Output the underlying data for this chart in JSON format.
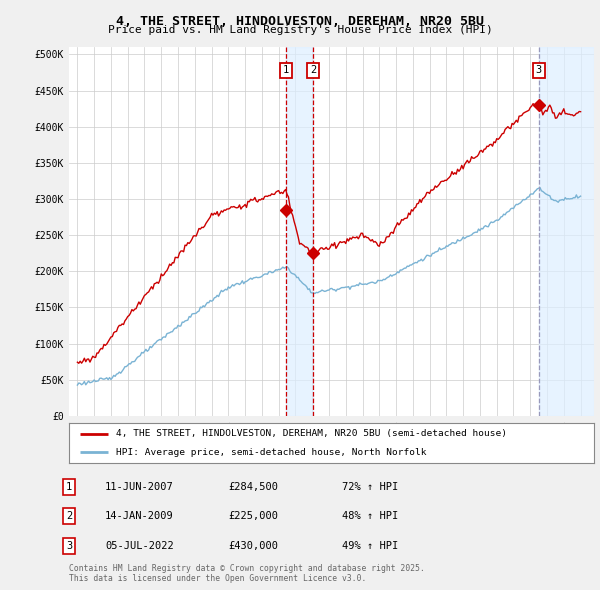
{
  "title_line1": "4, THE STREET, HINDOLVESTON, DEREHAM, NR20 5BU",
  "title_line2": "Price paid vs. HM Land Registry's House Price Index (HPI)",
  "ylabel_ticks": [
    "£0",
    "£50K",
    "£100K",
    "£150K",
    "£200K",
    "£250K",
    "£300K",
    "£350K",
    "£400K",
    "£450K",
    "£500K"
  ],
  "ytick_values": [
    0,
    50000,
    100000,
    150000,
    200000,
    250000,
    300000,
    350000,
    400000,
    450000,
    500000
  ],
  "xlim": [
    1994.5,
    2025.8
  ],
  "ylim": [
    0,
    510000
  ],
  "hpi_color": "#7ab3d4",
  "price_color": "#cc0000",
  "purchase_dates": [
    2007.44,
    2009.04,
    2022.51
  ],
  "purchase_prices": [
    284500,
    225000,
    430000
  ],
  "purchase_labels": [
    "1",
    "2",
    "3"
  ],
  "legend_line1": "4, THE STREET, HINDOLVESTON, DEREHAM, NR20 5BU (semi-detached house)",
  "legend_line2": "HPI: Average price, semi-detached house, North Norfolk",
  "table_entries": [
    {
      "num": "1",
      "date": "11-JUN-2007",
      "price": "£284,500",
      "hpi": "72% ↑ HPI"
    },
    {
      "num": "2",
      "date": "14-JAN-2009",
      "price": "£225,000",
      "hpi": "48% ↑ HPI"
    },
    {
      "num": "3",
      "date": "05-JUL-2022",
      "price": "£430,000",
      "hpi": "49% ↑ HPI"
    }
  ],
  "footer": "Contains HM Land Registry data © Crown copyright and database right 2025.\nThis data is licensed under the Open Government Licence v3.0.",
  "background_color": "#f0f0f0",
  "plot_bg_color": "#ffffff",
  "grid_color": "#cccccc",
  "span_color": "#ddeeff",
  "vline12_color": "#cc0000",
  "vline3_color": "#9999bb"
}
